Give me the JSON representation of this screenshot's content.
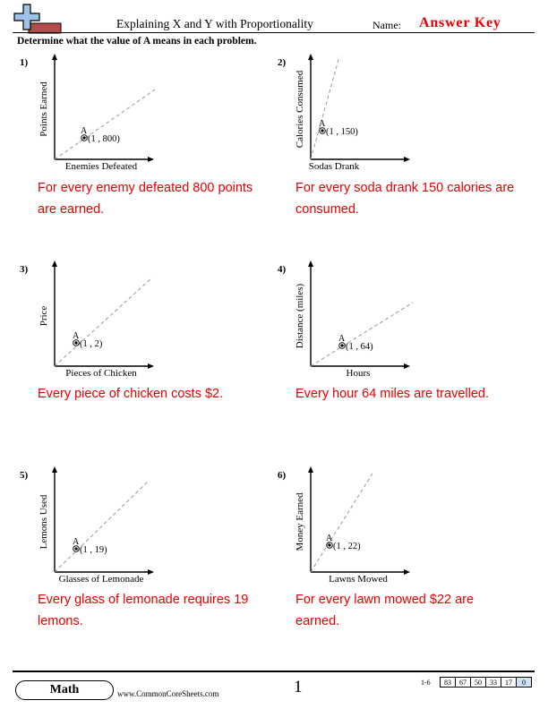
{
  "header": {
    "title": "Explaining X and Y with Proportionality",
    "name_label": "Name:",
    "answer_key": "Answer Key"
  },
  "instructions": "Determine what the value of A means in each problem.",
  "problems": [
    {
      "number": "1)",
      "y_label": "Points Earned",
      "x_label": "Enemies Defeated",
      "point_label": "A",
      "point": "(1 , 800)",
      "answer": "For every enemy defeated 800 points are earned."
    },
    {
      "number": "2)",
      "y_label": "Calories Consumed",
      "x_label": "Sodas Drank",
      "point_label": "A",
      "point": "(1 , 150)",
      "answer": "For every soda drank 150 calories are consumed."
    },
    {
      "number": "3)",
      "y_label": "Price",
      "x_label": "Pieces of Chicken",
      "point_label": "A",
      "point": "(1 , 2)",
      "answer": "Every piece of chicken costs $2."
    },
    {
      "number": "4)",
      "y_label": "Distance (miles)",
      "x_label": "Hours",
      "point_label": "A",
      "point": "(1 , 64)",
      "answer": "Every hour 64 miles are travelled."
    },
    {
      "number": "5)",
      "y_label": "Lemons Used",
      "x_label": "Glasses of Lemonade",
      "point_label": "A",
      "point": "(1 , 19)",
      "answer": "Every glass of lemonade requires 19 lemons."
    },
    {
      "number": "6)",
      "y_label": "Money Earned",
      "x_label": "Lawns Mowed",
      "point_label": "A",
      "point": "(1 , 22)",
      "answer": "For every lawn mowed $22 are earned."
    }
  ],
  "footer": {
    "subject": "Math",
    "website": "www.CommonCoreSheets.com",
    "page_number": "1",
    "score_range": "1-6",
    "scores": [
      "83",
      "67",
      "50",
      "33",
      "17",
      "0"
    ]
  },
  "colors": {
    "answer": "#e60000",
    "answer_key": "#e60000",
    "logo_blue": "#9fc3e8",
    "logo_red": "#b34c4c"
  }
}
